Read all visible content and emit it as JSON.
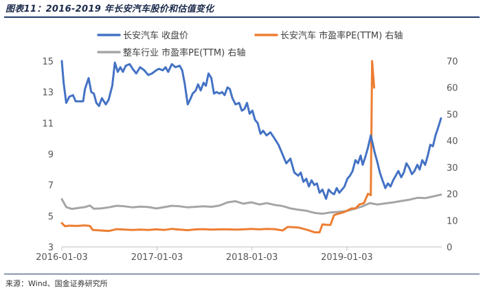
{
  "header": {
    "title": "图表11：2016-2019 年长安汽车股价和估值变化"
  },
  "footer": {
    "source": "来源：Wind、国金证券研究所"
  },
  "chart_data": {
    "type": "line",
    "title": "图表11：2016-2019 年长安汽车股价和估值变化",
    "x_ticks": [
      "2016-01-03",
      "2017-01-03",
      "2018-01-03",
      "2019-01-03"
    ],
    "x_range": [
      "2016-01-03",
      "2020-01-03"
    ],
    "y_left": {
      "range": [
        3,
        15
      ],
      "ticks": [
        3,
        5,
        7,
        9,
        11,
        13,
        15
      ]
    },
    "y_right": {
      "range": [
        0,
        70
      ],
      "ticks": [
        0,
        10,
        20,
        30,
        40,
        50,
        60,
        70
      ]
    },
    "grid": false,
    "legend_position": "top",
    "series": [
      {
        "name": "长安汽车 收盘价",
        "axis": "left",
        "color": "#4472C4",
        "points": [
          [
            "2016-01-03",
            15.0
          ],
          [
            "2016-01-10",
            13.6
          ],
          [
            "2016-01-20",
            12.3
          ],
          [
            "2016-02-01",
            12.7
          ],
          [
            "2016-02-15",
            12.8
          ],
          [
            "2016-02-25",
            12.4
          ],
          [
            "2016-03-10",
            12.4
          ],
          [
            "2016-03-25",
            12.4
          ],
          [
            "2016-04-01",
            13.2
          ],
          [
            "2016-04-15",
            13.9
          ],
          [
            "2016-04-25",
            13.0
          ],
          [
            "2016-05-05",
            12.9
          ],
          [
            "2016-05-15",
            12.3
          ],
          [
            "2016-05-25",
            12.1
          ],
          [
            "2016-06-05",
            12.6
          ],
          [
            "2016-06-20",
            12.2
          ],
          [
            "2016-07-01",
            12.5
          ],
          [
            "2016-07-15",
            13.4
          ],
          [
            "2016-07-25",
            14.9
          ],
          [
            "2016-08-05",
            14.3
          ],
          [
            "2016-08-15",
            14.6
          ],
          [
            "2016-08-25",
            14.3
          ],
          [
            "2016-09-05",
            14.7
          ],
          [
            "2016-09-20",
            14.8
          ],
          [
            "2016-10-01",
            14.5
          ],
          [
            "2016-10-15",
            14.2
          ],
          [
            "2016-10-30",
            14.6
          ],
          [
            "2016-11-15",
            14.4
          ],
          [
            "2016-11-30",
            14.1
          ],
          [
            "2016-12-15",
            14.2
          ],
          [
            "2016-12-31",
            14.4
          ],
          [
            "2017-01-10",
            14.5
          ],
          [
            "2017-01-25",
            14.4
          ],
          [
            "2017-02-05",
            14.6
          ],
          [
            "2017-02-15",
            14.3
          ],
          [
            "2017-03-01",
            14.8
          ],
          [
            "2017-03-15",
            14.6
          ],
          [
            "2017-03-31",
            14.7
          ],
          [
            "2017-04-10",
            14.4
          ],
          [
            "2017-04-20",
            13.5
          ],
          [
            "2017-05-01",
            12.2
          ],
          [
            "2017-05-10",
            12.5
          ],
          [
            "2017-05-20",
            12.9
          ],
          [
            "2017-06-01",
            13.1
          ],
          [
            "2017-06-10",
            13.5
          ],
          [
            "2017-06-20",
            13.1
          ],
          [
            "2017-07-01",
            13.6
          ],
          [
            "2017-07-10",
            13.4
          ],
          [
            "2017-07-20",
            14.2
          ],
          [
            "2017-07-31",
            13.9
          ],
          [
            "2017-08-10",
            12.9
          ],
          [
            "2017-08-20",
            13.0
          ],
          [
            "2017-08-31",
            12.9
          ],
          [
            "2017-09-10",
            13.0
          ],
          [
            "2017-09-20",
            12.8
          ],
          [
            "2017-10-01",
            13.3
          ],
          [
            "2017-10-10",
            13.2
          ],
          [
            "2017-10-20",
            12.6
          ],
          [
            "2017-11-01",
            12.2
          ],
          [
            "2017-11-15",
            12.3
          ],
          [
            "2017-11-25",
            11.8
          ],
          [
            "2017-12-05",
            11.9
          ],
          [
            "2017-12-15",
            12.3
          ],
          [
            "2017-12-25",
            11.6
          ],
          [
            "2018-01-05",
            11.8
          ],
          [
            "2018-01-15",
            11.2
          ],
          [
            "2018-01-25",
            11.0
          ],
          [
            "2018-02-05",
            10.3
          ],
          [
            "2018-02-15",
            10.5
          ],
          [
            "2018-02-28",
            10.2
          ],
          [
            "2018-03-15",
            10.4
          ],
          [
            "2018-03-31",
            10.0
          ],
          [
            "2018-04-15",
            9.6
          ],
          [
            "2018-04-30",
            9.0
          ],
          [
            "2018-05-15",
            8.4
          ],
          [
            "2018-05-31",
            8.7
          ],
          [
            "2018-06-15",
            7.8
          ],
          [
            "2018-06-30",
            7.6
          ],
          [
            "2018-07-10",
            7.8
          ],
          [
            "2018-07-20",
            7.2
          ],
          [
            "2018-07-31",
            7.4
          ],
          [
            "2018-08-10",
            6.9
          ],
          [
            "2018-08-20",
            7.3
          ],
          [
            "2018-08-31",
            7.0
          ],
          [
            "2018-09-10",
            7.1
          ],
          [
            "2018-09-20",
            6.5
          ],
          [
            "2018-10-01",
            6.7
          ],
          [
            "2018-10-15",
            6.1
          ],
          [
            "2018-10-25",
            6.7
          ],
          [
            "2018-11-05",
            6.5
          ],
          [
            "2018-11-15",
            6.4
          ],
          [
            "2018-11-25",
            6.8
          ],
          [
            "2018-12-05",
            6.5
          ],
          [
            "2018-12-15",
            6.7
          ],
          [
            "2018-12-25",
            6.9
          ],
          [
            "2019-01-05",
            7.4
          ],
          [
            "2019-01-15",
            7.6
          ],
          [
            "2019-01-25",
            7.9
          ],
          [
            "2019-02-05",
            8.6
          ],
          [
            "2019-02-15",
            8.4
          ],
          [
            "2019-02-25",
            8.9
          ],
          [
            "2019-03-05",
            8.3
          ],
          [
            "2019-03-15",
            8.8
          ],
          [
            "2019-03-25",
            9.4
          ],
          [
            "2019-04-05",
            10.2
          ],
          [
            "2019-04-12",
            9.7
          ],
          [
            "2019-04-20",
            9.1
          ],
          [
            "2019-04-30",
            8.5
          ],
          [
            "2019-05-10",
            7.8
          ],
          [
            "2019-05-20",
            7.3
          ],
          [
            "2019-05-31",
            6.8
          ],
          [
            "2019-06-10",
            7.1
          ],
          [
            "2019-06-20",
            6.9
          ],
          [
            "2019-06-30",
            7.3
          ],
          [
            "2019-07-10",
            7.6
          ],
          [
            "2019-07-20",
            7.9
          ],
          [
            "2019-07-31",
            7.5
          ],
          [
            "2019-08-10",
            7.8
          ],
          [
            "2019-08-20",
            8.4
          ],
          [
            "2019-08-31",
            8.1
          ],
          [
            "2019-09-10",
            7.7
          ],
          [
            "2019-09-20",
            7.9
          ],
          [
            "2019-10-01",
            8.3
          ],
          [
            "2019-10-10",
            8.0
          ],
          [
            "2019-10-20",
            8.6
          ],
          [
            "2019-10-31",
            8.3
          ],
          [
            "2019-11-10",
            8.9
          ],
          [
            "2019-11-20",
            9.6
          ],
          [
            "2019-11-30",
            9.5
          ],
          [
            "2019-12-10",
            10.2
          ],
          [
            "2019-12-20",
            10.7
          ],
          [
            "2019-12-31",
            11.3
          ]
        ]
      },
      {
        "name": "长安汽车 市盈率PE(TTM) 右轴",
        "axis": "right",
        "color": "#ED7D31",
        "points": [
          [
            "2016-01-03",
            9.0
          ],
          [
            "2016-01-15",
            7.8
          ],
          [
            "2016-02-01",
            8.0
          ],
          [
            "2016-03-01",
            7.9
          ],
          [
            "2016-04-01",
            8.1
          ],
          [
            "2016-04-20",
            7.9
          ],
          [
            "2016-05-01",
            6.4
          ],
          [
            "2016-06-01",
            6.2
          ],
          [
            "2016-07-01",
            6.0
          ],
          [
            "2016-08-01",
            6.7
          ],
          [
            "2016-09-01",
            6.5
          ],
          [
            "2016-10-01",
            6.4
          ],
          [
            "2016-11-01",
            6.5
          ],
          [
            "2016-12-01",
            6.4
          ],
          [
            "2017-01-01",
            6.6
          ],
          [
            "2017-02-01",
            6.4
          ],
          [
            "2017-03-01",
            6.8
          ],
          [
            "2017-04-01",
            6.5
          ],
          [
            "2017-05-01",
            6.3
          ],
          [
            "2017-06-01",
            6.6
          ],
          [
            "2017-07-01",
            6.7
          ],
          [
            "2017-08-01",
            6.5
          ],
          [
            "2017-09-01",
            6.6
          ],
          [
            "2017-10-01",
            6.6
          ],
          [
            "2017-11-01",
            6.5
          ],
          [
            "2017-12-01",
            6.6
          ],
          [
            "2018-01-01",
            6.8
          ],
          [
            "2018-02-01",
            6.6
          ],
          [
            "2018-03-01",
            6.8
          ],
          [
            "2018-04-01",
            6.7
          ],
          [
            "2018-05-01",
            6.2
          ],
          [
            "2018-05-20",
            7.5
          ],
          [
            "2018-06-01",
            7.5
          ],
          [
            "2018-07-01",
            7.3
          ],
          [
            "2018-08-01",
            6.5
          ],
          [
            "2018-09-01",
            5.5
          ],
          [
            "2018-09-20",
            5.5
          ],
          [
            "2018-10-01",
            8.5
          ],
          [
            "2018-10-20",
            8.3
          ],
          [
            "2018-11-01",
            8.3
          ],
          [
            "2018-11-15",
            12.0
          ],
          [
            "2018-12-01",
            12.5
          ],
          [
            "2018-12-20",
            13.0
          ],
          [
            "2019-01-01",
            13.5
          ],
          [
            "2019-01-20",
            14.5
          ],
          [
            "2019-02-05",
            14.5
          ],
          [
            "2019-02-20",
            16.0
          ],
          [
            "2019-03-10",
            16.5
          ],
          [
            "2019-03-25",
            20.0
          ],
          [
            "2019-04-05",
            19.5
          ],
          [
            "2019-04-10",
            70.0
          ],
          [
            "2019-04-18",
            60.0
          ]
        ]
      },
      {
        "name": "整车行业 市盈率PE(TTM) 右轴",
        "axis": "right",
        "color": "#A5A5A5",
        "points": [
          [
            "2016-01-03",
            18.0
          ],
          [
            "2016-01-20",
            15.0
          ],
          [
            "2016-02-10",
            14.3
          ],
          [
            "2016-03-01",
            14.6
          ],
          [
            "2016-04-01",
            15.0
          ],
          [
            "2016-04-20",
            15.6
          ],
          [
            "2016-05-05",
            14.4
          ],
          [
            "2016-06-01",
            14.5
          ],
          [
            "2016-07-01",
            14.9
          ],
          [
            "2016-08-01",
            15.5
          ],
          [
            "2016-09-01",
            15.3
          ],
          [
            "2016-10-01",
            14.9
          ],
          [
            "2016-11-01",
            15.2
          ],
          [
            "2016-12-01",
            15.0
          ],
          [
            "2017-01-01",
            14.5
          ],
          [
            "2017-02-01",
            15.0
          ],
          [
            "2017-03-01",
            15.5
          ],
          [
            "2017-04-01",
            15.3
          ],
          [
            "2017-05-01",
            14.9
          ],
          [
            "2017-06-01",
            15.1
          ],
          [
            "2017-07-01",
            15.3
          ],
          [
            "2017-08-01",
            15.1
          ],
          [
            "2017-09-01",
            15.6
          ],
          [
            "2017-10-01",
            16.8
          ],
          [
            "2017-11-01",
            17.2
          ],
          [
            "2017-12-01",
            16.3
          ],
          [
            "2018-01-01",
            16.8
          ],
          [
            "2018-02-01",
            16.0
          ],
          [
            "2018-03-01",
            16.5
          ],
          [
            "2018-04-01",
            15.8
          ],
          [
            "2018-05-01",
            15.4
          ],
          [
            "2018-06-01",
            14.5
          ],
          [
            "2018-07-01",
            14.0
          ],
          [
            "2018-08-01",
            13.6
          ],
          [
            "2018-09-01",
            12.8
          ],
          [
            "2018-10-01",
            12.5
          ],
          [
            "2018-11-01",
            13.0
          ],
          [
            "2018-12-01",
            13.2
          ],
          [
            "2019-01-01",
            13.5
          ],
          [
            "2019-02-01",
            14.3
          ],
          [
            "2019-03-01",
            15.2
          ],
          [
            "2019-04-01",
            16.5
          ],
          [
            "2019-05-01",
            16.0
          ],
          [
            "2019-06-01",
            16.4
          ],
          [
            "2019-07-01",
            16.8
          ],
          [
            "2019-08-01",
            17.3
          ],
          [
            "2019-09-01",
            17.8
          ],
          [
            "2019-10-01",
            18.5
          ],
          [
            "2019-11-01",
            18.4
          ],
          [
            "2019-12-01",
            19.0
          ],
          [
            "2019-12-31",
            19.7
          ]
        ]
      }
    ]
  }
}
